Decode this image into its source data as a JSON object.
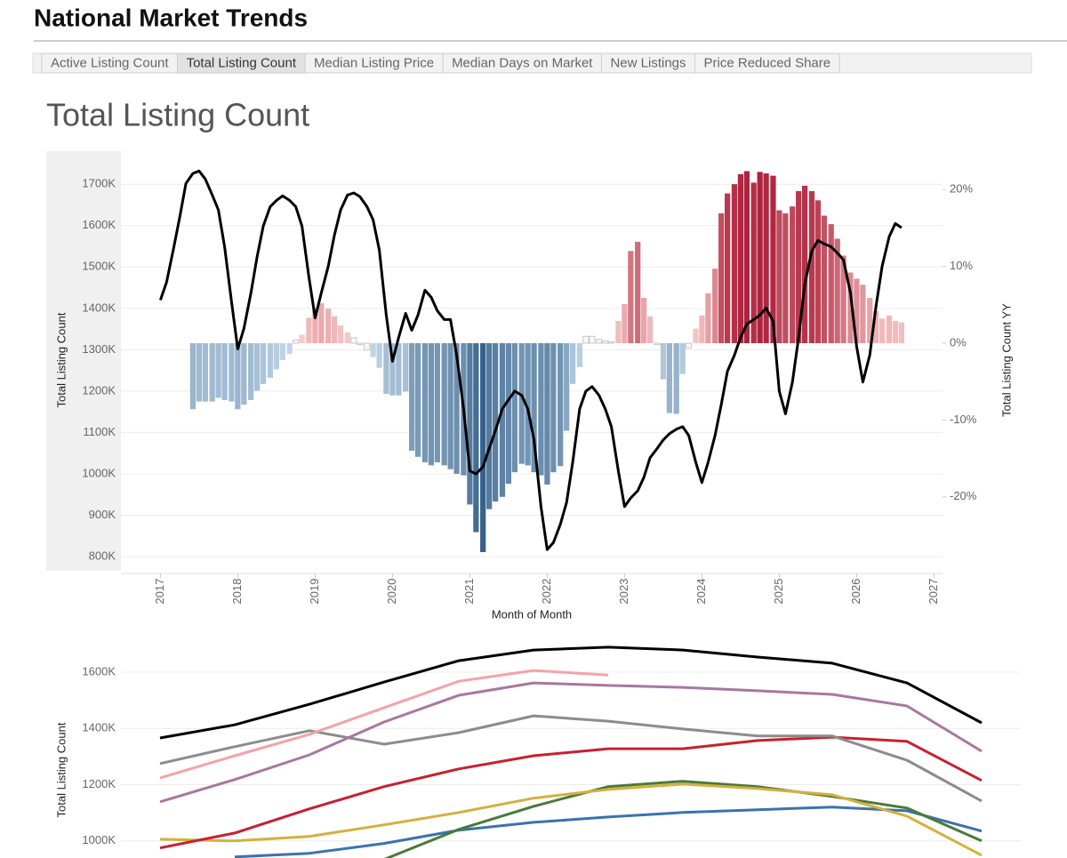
{
  "header": {
    "title": "National Market Trends"
  },
  "tabs": [
    "Active Listing Count",
    "Total Listing Count",
    "Median Listing Price",
    "Median Days on Market",
    "New Listings",
    "Price Reduced Share"
  ],
  "active_tab": 1,
  "chart_data": [
    {
      "type": "combo",
      "title": "Total Listing Count",
      "x_label": "Month of Month",
      "y_label": "Total Listing Count",
      "y2_label": "Total Listing Count YY",
      "x": [
        2017,
        2017.08,
        2017.17,
        2017.25,
        2017.33,
        2017.42,
        2017.5,
        2017.58,
        2017.67,
        2017.75,
        2017.83,
        2017.92,
        2018,
        2018.08,
        2018.17,
        2018.25,
        2018.33,
        2018.42,
        2018.5,
        2018.58,
        2018.67,
        2018.75,
        2018.83,
        2018.92,
        2019,
        2019.08,
        2019.17,
        2019.25,
        2019.33,
        2019.42,
        2019.5,
        2019.58,
        2019.67,
        2019.75,
        2019.83,
        2019.92,
        2020,
        2020.08,
        2020.17,
        2020.25,
        2020.33,
        2020.42,
        2020.5,
        2020.58,
        2020.67,
        2020.75,
        2020.83,
        2020.92,
        2021,
        2021.08,
        2021.17,
        2021.25,
        2021.33,
        2021.42,
        2021.5,
        2021.58,
        2021.67,
        2021.75,
        2021.83,
        2021.92,
        2022,
        2022.08,
        2022.17,
        2022.25,
        2022.33,
        2022.42,
        2022.5,
        2022.58,
        2022.67,
        2022.75,
        2022.83,
        2022.92,
        2023,
        2023.08,
        2023.17,
        2023.25,
        2023.33,
        2023.42,
        2023.5,
        2023.58,
        2023.67,
        2023.75,
        2023.83,
        2023.92,
        2024,
        2024.08,
        2024.17,
        2024.25,
        2024.33,
        2024.42,
        2024.5,
        2024.58,
        2024.67,
        2024.75,
        2024.83,
        2024.92,
        2025,
        2025.08,
        2025.17,
        2025.25,
        2025.33,
        2025.42,
        2025.5,
        2025.58,
        2025.67,
        2025.75,
        2025.83,
        2025.92,
        2026,
        2026.08,
        2026.17,
        2026.25,
        2026.33,
        2026.42,
        2026.5,
        2026.58
      ],
      "xlim": [
        2016.49,
        2027.11
      ],
      "xticks": [
        2017,
        2018,
        2019,
        2020,
        2021,
        2022,
        2023,
        2024,
        2025,
        2026,
        2027
      ],
      "ylim": [
        770000,
        1780000
      ],
      "yticks": [
        {
          "value": 800000,
          "label": "800K"
        },
        {
          "value": 900000,
          "label": "900K"
        },
        {
          "value": 1000000,
          "label": "1000K"
        },
        {
          "value": 1100000,
          "label": "1100K"
        },
        {
          "value": 1200000,
          "label": "1200K"
        },
        {
          "value": 1300000,
          "label": "1300K"
        },
        {
          "value": 1400000,
          "label": "1400K"
        },
        {
          "value": 1500000,
          "label": "1500K"
        },
        {
          "value": 1600000,
          "label": "1600K"
        },
        {
          "value": 1700000,
          "label": "1700K"
        }
      ],
      "y2lim": [
        -29.4,
        25
      ],
      "y2ticks": [
        {
          "value": -20,
          "label": "-20%"
        },
        {
          "value": -10,
          "label": "-10%"
        },
        {
          "value": 0,
          "label": "0%"
        },
        {
          "value": 10,
          "label": "10%"
        },
        {
          "value": 20,
          "label": "20%"
        }
      ],
      "grid": true,
      "series": [
        {
          "type": "bar",
          "axis": "y2",
          "negative_colors": [
            "#c9dcec",
            "#2a5783"
          ],
          "positive_colors": [
            "#fbd3cf",
            "#a50f2d"
          ],
          "values": [
            null,
            null,
            null,
            null,
            null,
            -8.6,
            -7.6,
            -7.6,
            -7.6,
            -7.1,
            -7.4,
            -7.6,
            -8.6,
            -8.0,
            -7.4,
            -6.2,
            -5.3,
            -4.5,
            -3.4,
            -2.2,
            -1.4,
            0.4,
            1.1,
            3.3,
            4.6,
            5.2,
            4.5,
            3.5,
            2.3,
            1.4,
            0.7,
            -0.2,
            -0.9,
            -1.8,
            -3.2,
            -6.6,
            -6.8,
            -6.8,
            -6.3,
            -14.0,
            -14.8,
            -15.5,
            -15.9,
            -15.5,
            -15.9,
            -16.4,
            -17.0,
            -17.2,
            -21.0,
            -24.6,
            -27.2,
            -21.6,
            -20.6,
            -20.0,
            -18.3,
            -16.8,
            -15.7,
            -15.9,
            -16.8,
            -17.2,
            -18.4,
            -16.8,
            -16.0,
            -11.4,
            -5.3,
            -3.1,
            0.9,
            0.9,
            0.5,
            0.3,
            0.2,
            2.9,
            5.1,
            12.0,
            13.2,
            5.9,
            3.5,
            -0.2,
            -4.7,
            -9.1,
            -9.2,
            -4.0,
            -0.6,
            1.9,
            3.6,
            6.5,
            9.7,
            16.9,
            19.5,
            20.7,
            22.0,
            22.4,
            20.9,
            22.3,
            22.1,
            21.8,
            17.3,
            16.9,
            17.8,
            19.8,
            20.5,
            19.8,
            18.6,
            16.6,
            15.5,
            13.6,
            11.4,
            9.2,
            8.4,
            7.6,
            5.9,
            4.2,
            3.2,
            3.6,
            2.9,
            2.7
          ]
        },
        {
          "type": "line",
          "color": "#000000",
          "values": [
            1420000,
            1463000,
            1545000,
            1620000,
            1702000,
            1726000,
            1732000,
            1713000,
            1674000,
            1638000,
            1549000,
            1416000,
            1302000,
            1351000,
            1437000,
            1524000,
            1599000,
            1646000,
            1661000,
            1672000,
            1661000,
            1646000,
            1599000,
            1476000,
            1377000,
            1437000,
            1502000,
            1577000,
            1638000,
            1674000,
            1679000,
            1670000,
            1646000,
            1614000,
            1541000,
            1384000,
            1272000,
            1330000,
            1388000,
            1347000,
            1384000,
            1444000,
            1427000,
            1394000,
            1373000,
            1373000,
            1287000,
            1157000,
            1007000,
            1000000,
            1017000,
            1061000,
            1104000,
            1157000,
            1179000,
            1200000,
            1190000,
            1157000,
            1082000,
            921000,
            817000,
            834000,
            878000,
            931000,
            1028000,
            1157000,
            1200000,
            1211000,
            1190000,
            1157000,
            1114000,
            1007000,
            921000,
            942000,
            959000,
            992000,
            1039000,
            1061000,
            1082000,
            1097000,
            1108000,
            1114000,
            1093000,
            1028000,
            979000,
            1028000,
            1093000,
            1168000,
            1248000,
            1287000,
            1330000,
            1362000,
            1373000,
            1384000,
            1401000,
            1369000,
            1200000,
            1145000,
            1222000,
            1330000,
            1459000,
            1539000,
            1564000,
            1556000,
            1549000,
            1534000,
            1517000,
            1437000,
            1308000,
            1222000,
            1287000,
            1405000,
            1502000,
            1573000,
            1605000,
            1595000
          ]
        }
      ]
    },
    {
      "type": "line",
      "y_label": "Total Listing Count",
      "categories": [
        null,
        null,
        null,
        null,
        null,
        null,
        null,
        null,
        null,
        null,
        null,
        null
      ],
      "ylim": [
        800000,
        1714000
      ],
      "yticks": [
        {
          "value": 1000000,
          "label": "1000K"
        },
        {
          "value": 1200000,
          "label": "1200K"
        },
        {
          "value": 1400000,
          "label": "1400K"
        },
        {
          "value": 1600000,
          "label": "1600K"
        }
      ],
      "grid": true,
      "series": [
        {
          "color": "#3a72b0",
          "values": [
            null,
            943000,
            956000,
            991000,
            1038000,
            1066000,
            1085000,
            1101000,
            1111000,
            1120000,
            1107000,
            1035000
          ]
        },
        {
          "color": "#4a7a3a",
          "values": [
            null,
            null,
            null,
            934000,
            1041000,
            1123000,
            1193000,
            1212000,
            1193000,
            1158000,
            1117000,
            1000000
          ]
        },
        {
          "color": "#d4b03c",
          "values": [
            1006000,
            1000000,
            1016000,
            1057000,
            1101000,
            1152000,
            1183000,
            1202000,
            1186000,
            1164000,
            1088000,
            949000
          ]
        },
        {
          "color": "#c8202f",
          "values": [
            975000,
            1028000,
            1114000,
            1193000,
            1256000,
            1303000,
            1328000,
            1328000,
            1357000,
            1369000,
            1354000,
            1215000
          ]
        },
        {
          "color": "#8c8c8c",
          "values": [
            1275000,
            1335000,
            1392000,
            1344000,
            1385000,
            1445000,
            1426000,
            1398000,
            1373000,
            1373000,
            1287000,
            1142000
          ]
        },
        {
          "color": "#a678a0",
          "values": [
            1139000,
            1218000,
            1306000,
            1423000,
            1518000,
            1562000,
            1553000,
            1546000,
            1534000,
            1521000,
            1480000,
            1319000
          ]
        },
        {
          "color": "#f4a3a8",
          "values": [
            1224000,
            1303000,
            1379000,
            1474000,
            1568000,
            1606000,
            1590000,
            null,
            null,
            null,
            null,
            null
          ]
        },
        {
          "color": "#000000",
          "values": [
            1366000,
            1413000,
            1486000,
            1565000,
            1641000,
            1679000,
            1689000,
            1679000,
            1654000,
            1632000,
            1562000,
            1420000
          ]
        }
      ]
    }
  ]
}
